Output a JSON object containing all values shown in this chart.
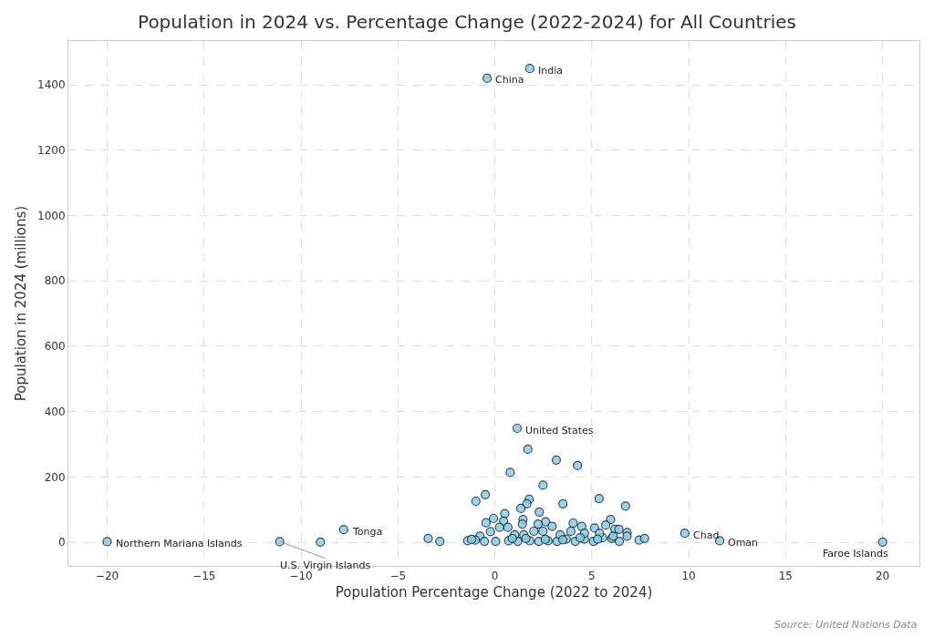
{
  "chart_data": {
    "type": "scatter",
    "title": "Population in 2024 vs. Percentage Change (2022-2024) for All Countries",
    "xlabel": "Population Percentage Change (2022 to 2024)",
    "ylabel": "Population in 2024 (millions)",
    "x": [
      1.8,
      -0.4,
      1.15,
      -20,
      -11.1,
      -7.8,
      -9.0,
      9.8,
      11.6,
      20,
      1.7,
      3.17,
      4.26,
      0.79,
      2.48,
      -0.98,
      -0.49,
      1.77,
      1.65,
      1.34,
      3.51,
      5.38,
      6.74,
      2.29,
      0.51,
      -0.07,
      1.45,
      1.42,
      -0.46,
      0.45,
      2.62,
      2.23,
      2.95,
      4.04,
      4.48,
      5.97,
      5.72,
      6.19,
      6.4,
      5.14,
      6.82,
      6.82,
      3.92,
      2.01,
      2.48,
      -0.23,
      0.67,
      0.24,
      -0.77,
      -3.44,
      -2.84,
      -1.4,
      -1.01,
      -0.54,
      0.04,
      0.71,
      1.18,
      1.8,
      2.27,
      2.74,
      3.21,
      3.68,
      4.15,
      4.62,
      5.09,
      5.56,
      6.03,
      6.42,
      7.44,
      7.72,
      4.62,
      3.37,
      1.49,
      1.02,
      5.4,
      -1.2,
      0.9,
      1.6,
      2.6,
      3.5,
      4.4,
      5.3,
      6.1
    ],
    "values": [
      1450,
      1420,
      349,
      2,
      2,
      39,
      1,
      28,
      5,
      1,
      285,
      252,
      235,
      214,
      175,
      126,
      146,
      132,
      118,
      104,
      118,
      134,
      111,
      93,
      88,
      73,
      70,
      56,
      60,
      65,
      63,
      56,
      49,
      59,
      49,
      70,
      53,
      40,
      40,
      44,
      30,
      19,
      34,
      34,
      34,
      33,
      46,
      46,
      19,
      12,
      3,
      5,
      7,
      3,
      3,
      5,
      3,
      5,
      3,
      5,
      3,
      10,
      3,
      10,
      3,
      14,
      12,
      3,
      7,
      12,
      28,
      23,
      23,
      23,
      28,
      9,
      12,
      12,
      9,
      8,
      14,
      10,
      19
    ],
    "color": "#87ceeb",
    "marker": "circle",
    "xlim": [
      -22,
      21.9
    ],
    "xticks": [
      {
        "value": -20,
        "label": "−20"
      },
      {
        "value": -15,
        "label": "−15"
      },
      {
        "value": -10,
        "label": "−10"
      },
      {
        "value": -5,
        "label": "−5"
      },
      0,
      5,
      10,
      15,
      20
    ],
    "ylim": [
      -72,
      1534
    ],
    "yticks": [
      0,
      200,
      400,
      600,
      800,
      1000,
      1200,
      1400
    ],
    "grid": true,
    "annotations": [
      {
        "text": "India",
        "x": 1.8,
        "y": 1450
      },
      {
        "text": "China",
        "x": -0.4,
        "y": 1420
      },
      {
        "text": "United States",
        "x": 1.15,
        "y": 349
      },
      {
        "text": "Northern Mariana Islands",
        "x": -20,
        "y": 2
      },
      {
        "text": "U.S. Virgin Islands",
        "x": -11.1,
        "y": 2
      },
      {
        "text": "Tonga",
        "x": -7.8,
        "y": 39
      },
      {
        "text": "Chad",
        "x": 9.8,
        "y": 28
      },
      {
        "text": "Oman",
        "x": 11.6,
        "y": 5
      },
      {
        "text": "Faroe Islands",
        "x": 20,
        "y": 1
      },
      "Source: United Nations Data"
    ]
  }
}
